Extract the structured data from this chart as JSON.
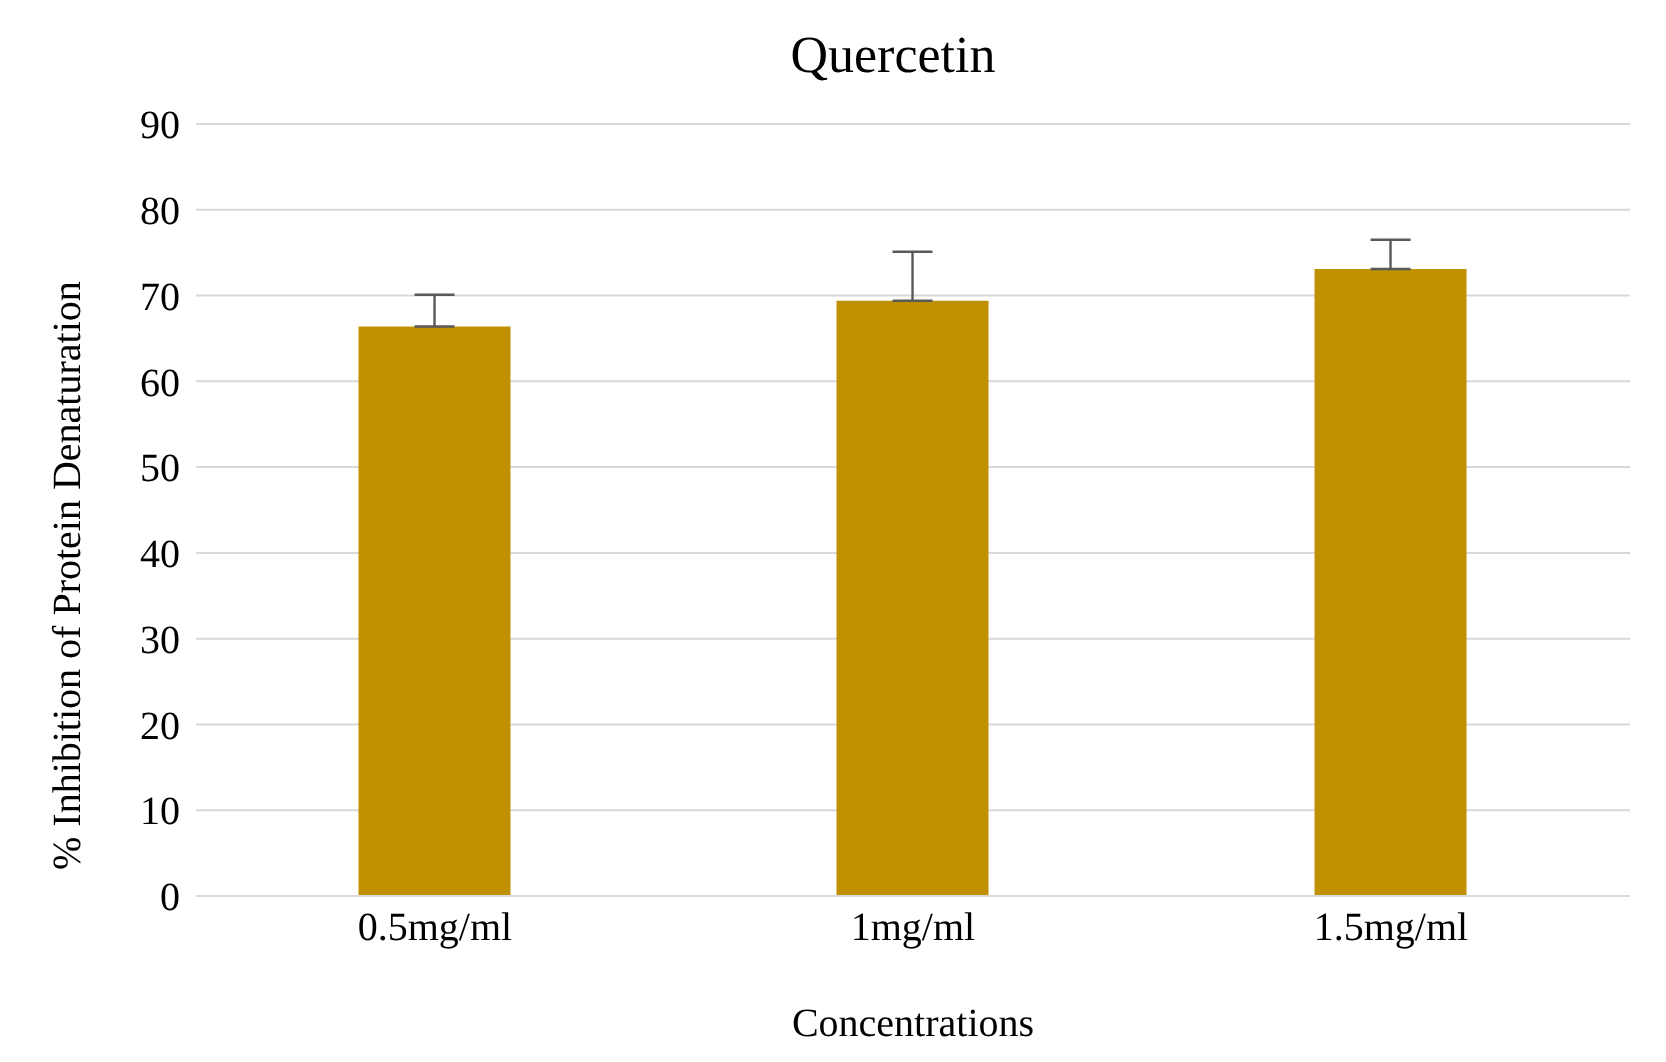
{
  "chart_data": {
    "type": "bar",
    "title": "Quercetin",
    "xlabel": "Concentrations",
    "ylabel": "% Inhibition of Protein Denaturation",
    "categories": [
      "0.5mg/ml",
      "1mg/ml",
      "1.5mg/ml"
    ],
    "values": [
      66.4,
      69.4,
      73.1
    ],
    "errors": [
      [
        66.4,
        70.1
      ],
      [
        69.4,
        75.1
      ],
      [
        73.1,
        76.5
      ]
    ],
    "color": "#bf9000",
    "ylim": [
      0,
      90
    ],
    "yticks": [
      0,
      10,
      20,
      30,
      40,
      50,
      60,
      70,
      80,
      90
    ],
    "grid": "y",
    "legend": false
  }
}
